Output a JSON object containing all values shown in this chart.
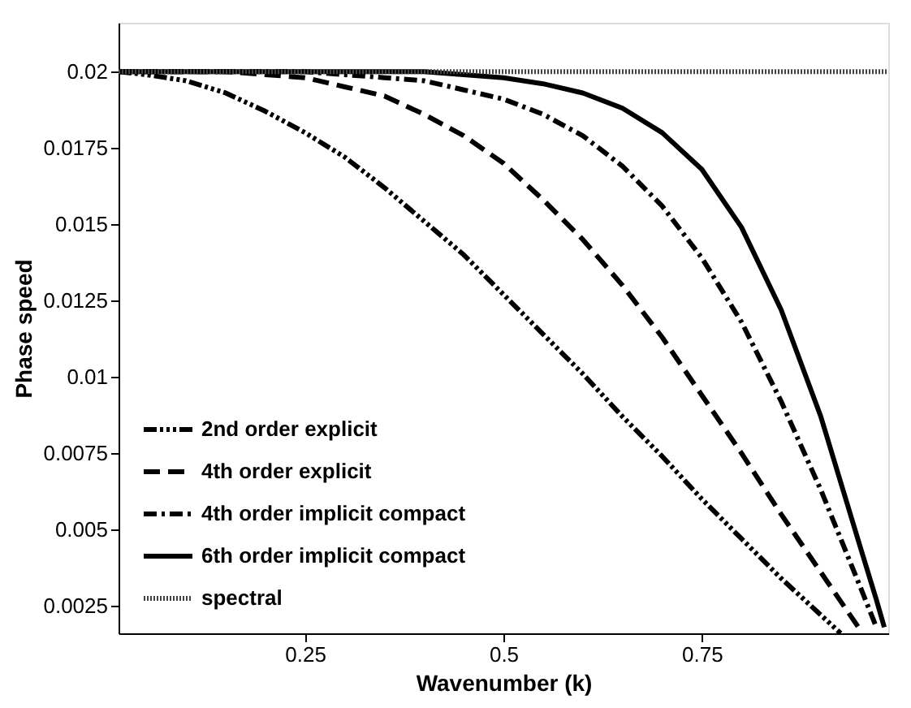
{
  "chart_data": {
    "type": "line",
    "xlabel": "Wavenumber (k)",
    "ylabel": "Phase speed",
    "xlim": [
      0.015,
      0.985
    ],
    "ylim": [
      0.0016,
      0.0216
    ],
    "xticks": [
      0.25,
      0.5,
      0.75
    ],
    "yticks": [
      0.0025,
      0.005,
      0.0075,
      0.01,
      0.0125,
      0.015,
      0.0175,
      0.02
    ],
    "grid": false,
    "legend": "bottom left",
    "marker": "none",
    "series": [
      {
        "name": "2nd order explicit",
        "color": "#000000",
        "line_style": "dashdotdot",
        "x": [
          0.015,
          0.05,
          0.1,
          0.15,
          0.2,
          0.25,
          0.3,
          0.35,
          0.4,
          0.45,
          0.5,
          0.55,
          0.6,
          0.65,
          0.7,
          0.75,
          0.8,
          0.85,
          0.9,
          0.925
        ],
        "values": [
          0.02,
          0.0199,
          0.0197,
          0.0193,
          0.0187,
          0.018,
          0.0172,
          0.0162,
          0.0151,
          0.014,
          0.0127,
          0.0114,
          0.0101,
          0.0087,
          0.0074,
          0.006,
          0.0047,
          0.0034,
          0.0022,
          0.0016
        ]
      },
      {
        "name": "4th order explicit",
        "color": "#000000",
        "line_style": "dashed",
        "x": [
          0.015,
          0.05,
          0.1,
          0.15,
          0.2,
          0.25,
          0.3,
          0.35,
          0.4,
          0.45,
          0.5,
          0.55,
          0.6,
          0.65,
          0.7,
          0.75,
          0.8,
          0.85,
          0.9,
          0.95
        ],
        "values": [
          0.02,
          0.02,
          0.02,
          0.02,
          0.0199,
          0.0198,
          0.0195,
          0.0192,
          0.0186,
          0.0179,
          0.017,
          0.0158,
          0.0145,
          0.013,
          0.0113,
          0.0094,
          0.0075,
          0.0055,
          0.0036,
          0.0017
        ]
      },
      {
        "name": "4th order implicit compact",
        "color": "#000000",
        "line_style": "dashdot",
        "x": [
          0.015,
          0.05,
          0.1,
          0.15,
          0.2,
          0.25,
          0.3,
          0.35,
          0.4,
          0.45,
          0.5,
          0.55,
          0.6,
          0.65,
          0.7,
          0.75,
          0.8,
          0.85,
          0.9,
          0.95,
          0.97
        ],
        "values": [
          0.02,
          0.02,
          0.02,
          0.02,
          0.02,
          0.02,
          0.0199,
          0.0198,
          0.0197,
          0.0194,
          0.0191,
          0.0186,
          0.0179,
          0.0169,
          0.0156,
          0.0139,
          0.0118,
          0.0092,
          0.0063,
          0.0031,
          0.0018
        ]
      },
      {
        "name": "6th order implicit compact",
        "color": "#000000",
        "line_style": "solid",
        "x": [
          0.015,
          0.05,
          0.1,
          0.15,
          0.2,
          0.25,
          0.3,
          0.35,
          0.4,
          0.45,
          0.5,
          0.55,
          0.6,
          0.65,
          0.7,
          0.75,
          0.8,
          0.85,
          0.9,
          0.95,
          0.97,
          0.98
        ],
        "values": [
          0.02,
          0.02,
          0.02,
          0.02,
          0.02,
          0.02,
          0.02,
          0.02,
          0.02,
          0.0199,
          0.0198,
          0.0196,
          0.0193,
          0.0188,
          0.018,
          0.0168,
          0.0149,
          0.0122,
          0.0087,
          0.0044,
          0.0027,
          0.0018
        ]
      },
      {
        "name": "spectral",
        "color": "#444444",
        "line_style": "dotted",
        "x": [
          0.015,
          0.985
        ],
        "values": [
          0.02,
          0.02
        ]
      }
    ]
  }
}
